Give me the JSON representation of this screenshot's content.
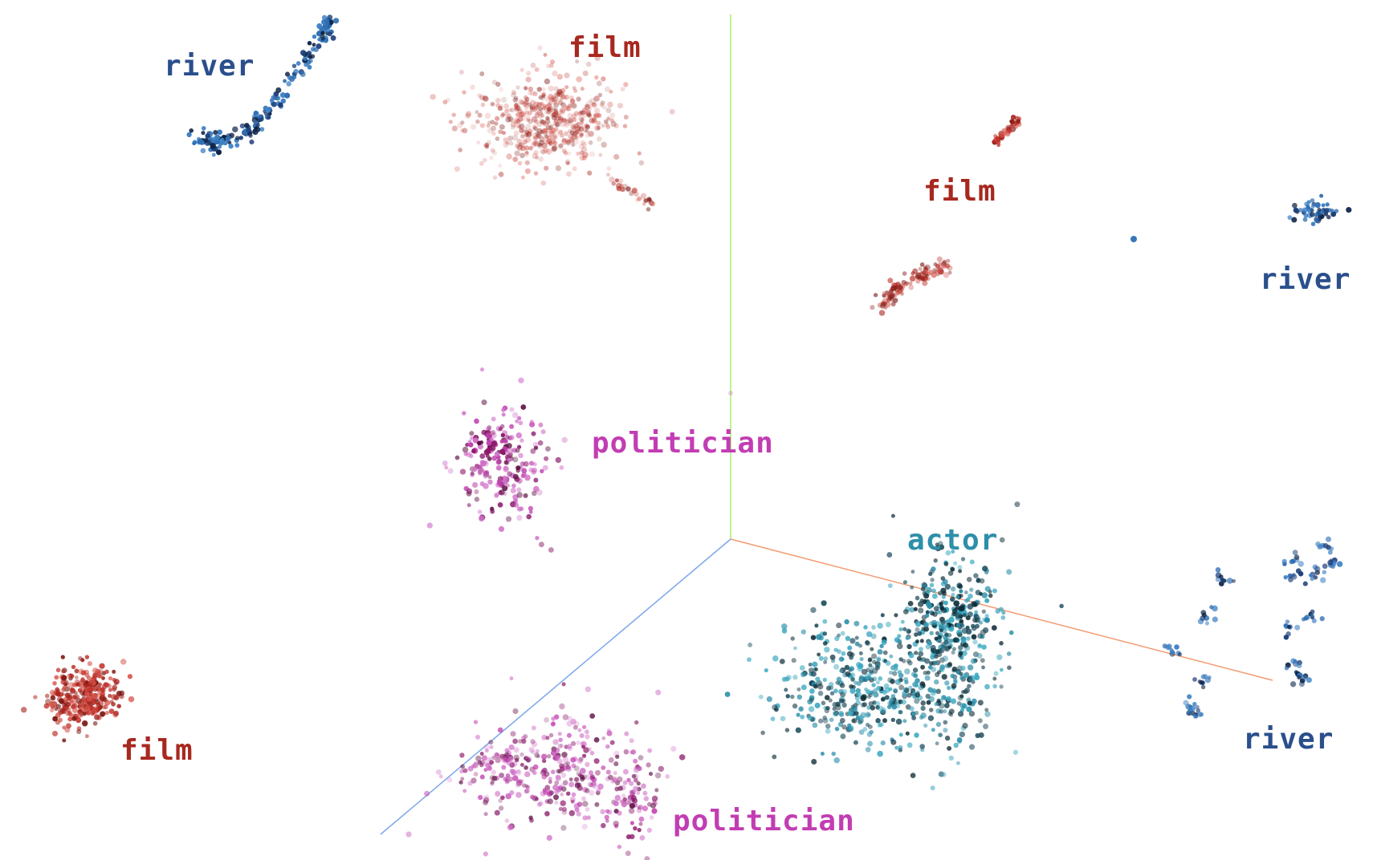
{
  "chart_data": {
    "type": "scatter",
    "title": "",
    "projection": "3d",
    "axes": [
      {
        "name": "x",
        "color": "#f08060"
      },
      {
        "name": "y",
        "color": "#9be060"
      },
      {
        "name": "z",
        "color": "#6b9be8"
      }
    ],
    "categories": [
      "river",
      "film",
      "politician",
      "actor"
    ],
    "category_colors": {
      "river": "#2a5fa8",
      "film": "#c0332b",
      "politician": "#c040b0",
      "actor": "#3aa8c0"
    },
    "cluster_labels": [
      {
        "id": "river-1",
        "text": "river",
        "category": "river"
      },
      {
        "id": "film-1",
        "text": "film",
        "category": "film"
      },
      {
        "id": "film-2",
        "text": "film",
        "category": "film"
      },
      {
        "id": "river-2",
        "text": "river",
        "category": "river"
      },
      {
        "id": "politician-1",
        "text": "politician",
        "category": "politician"
      },
      {
        "id": "actor-1",
        "text": "actor",
        "category": "actor"
      },
      {
        "id": "film-3",
        "text": "film",
        "category": "film"
      },
      {
        "id": "river-3",
        "text": "river",
        "category": "river"
      },
      {
        "id": "politician-2",
        "text": "politician",
        "category": "politician"
      }
    ]
  }
}
